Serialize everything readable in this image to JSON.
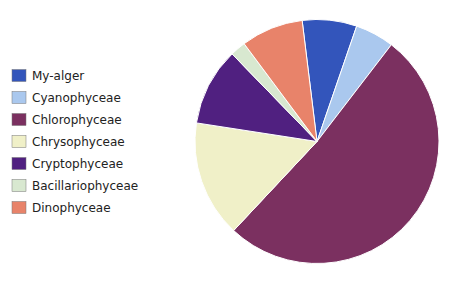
{
  "chart_data": {
    "type": "pie",
    "categories": [
      "My-alger",
      "Cyanophyceae",
      "Chlorophyceae",
      "Chrysophyceae",
      "Cryptophyceae",
      "Bacillariophyceae",
      "Dinophyceae"
    ],
    "values": [
      7,
      5,
      50,
      15,
      10,
      2,
      8
    ],
    "colors": [
      "#3355bb",
      "#aac8ee",
      "#7b3060",
      "#f0f0c8",
      "#502080",
      "#d8e8d0",
      "#e8836a"
    ],
    "legend": "left"
  }
}
